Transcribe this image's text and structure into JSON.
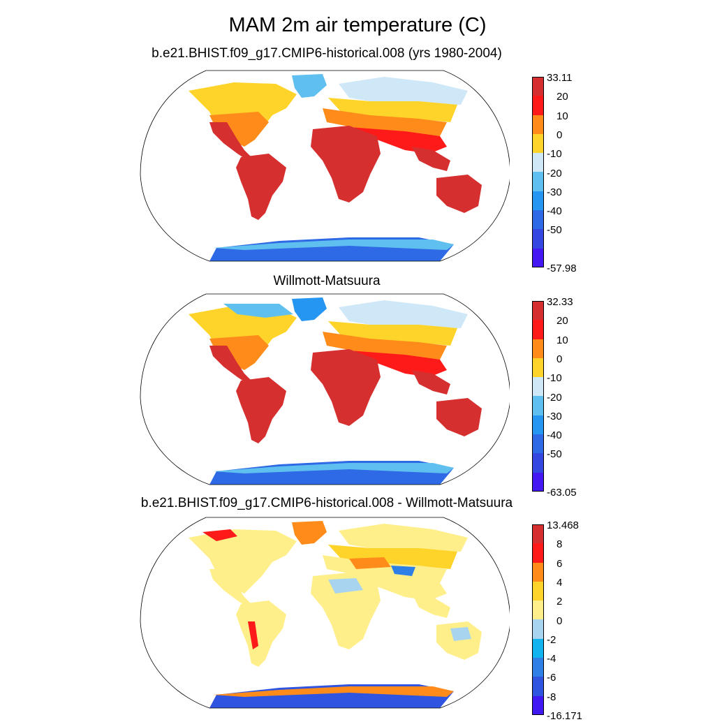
{
  "figure": {
    "title": "MAM 2m air temperature (C)"
  },
  "panels": [
    {
      "name": "model",
      "title": "b.e21.BHIST.f09_g17.CMIP6-historical.008 (yrs 1980-2004)",
      "colorbar": {
        "labels": [
          "33.11",
          "20",
          "10",
          "0",
          "-10",
          "-20",
          "-30",
          "-40",
          "-50",
          "-57.98"
        ],
        "colors": [
          "#d62f2f",
          "#ff1a1a",
          "#ff8c1a",
          "#ffd42a",
          "#cfe8f7",
          "#5fc0f0",
          "#2596f2",
          "#2f6ae6",
          "#3447e0",
          "#4418f2"
        ]
      }
    },
    {
      "name": "observation",
      "title": "Willmott-Matsuura",
      "colorbar": {
        "labels": [
          "32.33",
          "20",
          "10",
          "0",
          "-10",
          "-20",
          "-30",
          "-40",
          "-50",
          "-63.05"
        ],
        "colors": [
          "#d62f2f",
          "#ff1a1a",
          "#ff8c1a",
          "#ffd42a",
          "#cfe8f7",
          "#5fc0f0",
          "#2596f2",
          "#2f6ae6",
          "#3447e0",
          "#4418f2"
        ]
      }
    },
    {
      "name": "difference",
      "title": "b.e21.BHIST.f09_g17.CMIP6-historical.008 - Willmott-Matsuura",
      "colorbar": {
        "labels": [
          "13.468",
          "8",
          "6",
          "4",
          "2",
          "0",
          "-2",
          "-4",
          "-6",
          "-8",
          "-16.171"
        ],
        "colors": [
          "#d62f2f",
          "#ff1a1a",
          "#ff8c1a",
          "#ffd42a",
          "#ffef8a",
          "#a8d4f0",
          "#12b4f0",
          "#2f80e6",
          "#2f55e0",
          "#3f18f2"
        ]
      }
    }
  ],
  "map_colors": {
    "tropical": "#d62f2f",
    "warm": "#ff1a1a",
    "mild": "#ff8c1a",
    "cool": "#ffd42a",
    "cold": "#cfe8f7",
    "polar": "#5fc0f0",
    "ice": "#2f6ae6",
    "diff_neutral": "#ffef8a",
    "diff_light_neg": "#a8d4f0",
    "diff_warm": "#ff8c1a",
    "diff_hot": "#ff1a1a"
  }
}
